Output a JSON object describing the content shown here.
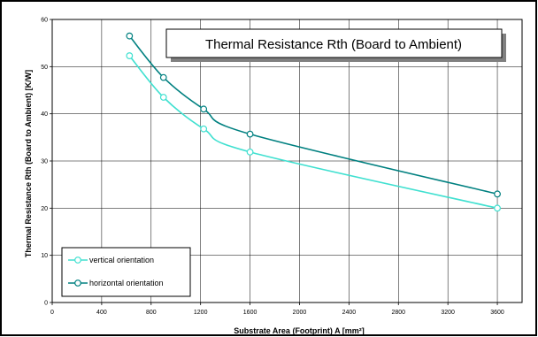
{
  "chart_data": {
    "type": "line",
    "title": "Thermal Resistance Rth (Board to Ambient)",
    "xlabel": "Substrate Area (Footprint) A [mm²]",
    "ylabel": "Thermal Resistance Rth (Board to Ambient) [K/W]",
    "xlim": [
      0,
      3800
    ],
    "ylim": [
      0,
      60
    ],
    "xticks": [
      0,
      400,
      800,
      1200,
      1600,
      2000,
      2400,
      2800,
      3200,
      3600
    ],
    "yticks": [
      0,
      10,
      20,
      30,
      40,
      50,
      60
    ],
    "grid": true,
    "legend_position": "bottom-left",
    "series": [
      {
        "name": "vertical orientation",
        "color": "#40e0d0",
        "x": [
          625,
          900,
          1225,
          1600,
          3600
        ],
        "y": [
          52.3,
          43.5,
          36.8,
          31.9,
          20.0
        ]
      },
      {
        "name": "horizontal orientation",
        "color": "#008080",
        "x": [
          625,
          900,
          1225,
          1600,
          3600
        ],
        "y": [
          56.5,
          47.7,
          41.0,
          35.7,
          23.0
        ]
      }
    ]
  }
}
